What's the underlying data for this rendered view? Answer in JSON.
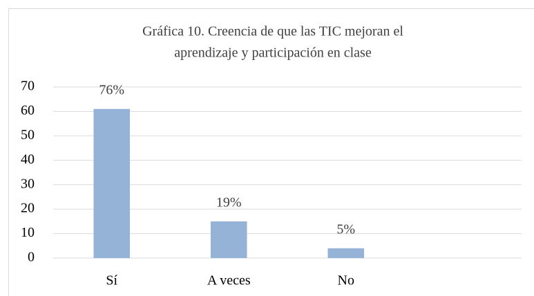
{
  "chart_data": {
    "type": "bar",
    "title": [
      "Gráfica 10. Creencia de que las TIC mejoran el",
      "aprendizaje y participación en clase"
    ],
    "categories": [
      "Sí",
      "A veces",
      "No",
      null
    ],
    "values": [
      61,
      15,
      4,
      null
    ],
    "data_labels": [
      "76%",
      "19%",
      "5%",
      null
    ],
    "color": "#95b3d7",
    "ylim": [
      0,
      70
    ],
    "yticks": [
      0,
      10,
      20,
      30,
      40,
      50,
      60,
      70
    ],
    "grid": true
  }
}
